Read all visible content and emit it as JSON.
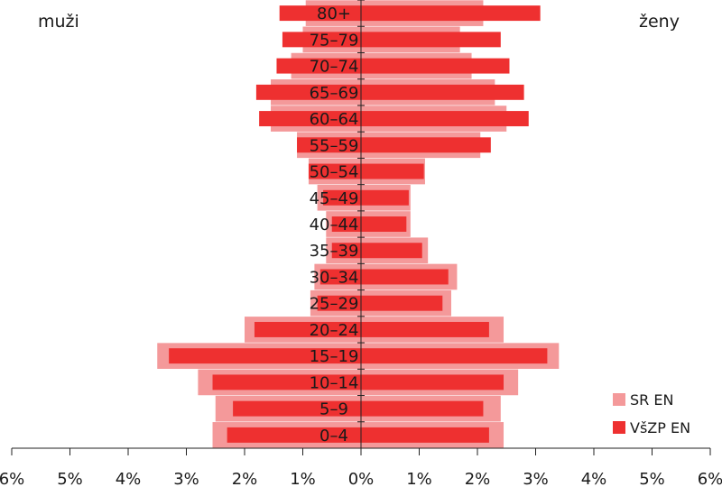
{
  "chart_data": {
    "type": "bar",
    "orientation": "horizontal",
    "subtype": "population-pyramid",
    "left_group_label": "muži",
    "right_group_label": "ženy",
    "categories": [
      "0–4",
      "5–9",
      "10–14",
      "15–19",
      "20–24",
      "25–29",
      "30–34",
      "35–39",
      "40–44",
      "45–49",
      "50–54",
      "55–59",
      "60–64",
      "65–69",
      "70–74",
      "75–79",
      "80+"
    ],
    "series": [
      {
        "name": "SR EN",
        "color": "#f4999a",
        "men": [
          2.55,
          2.5,
          2.8,
          3.5,
          2.0,
          0.87,
          0.8,
          0.6,
          0.6,
          0.75,
          0.9,
          1.1,
          1.55,
          1.55,
          1.2,
          1.0,
          0.95
        ],
        "women": [
          2.45,
          2.4,
          2.7,
          3.4,
          2.45,
          1.55,
          1.65,
          1.15,
          0.85,
          0.85,
          1.1,
          2.05,
          2.5,
          2.3,
          1.9,
          1.7,
          2.1
        ]
      },
      {
        "name": "VšZP EN",
        "color": "#ee3030",
        "men": [
          2.3,
          2.2,
          2.55,
          3.3,
          1.83,
          0.75,
          0.7,
          0.5,
          0.5,
          0.65,
          0.9,
          1.1,
          1.75,
          1.8,
          1.45,
          1.35,
          1.4
        ],
        "women": [
          2.2,
          2.1,
          2.45,
          3.2,
          2.2,
          1.4,
          1.5,
          1.05,
          0.78,
          0.82,
          1.08,
          2.23,
          2.88,
          2.8,
          2.55,
          2.4,
          3.08
        ]
      }
    ],
    "x_ticks": [
      "6%",
      "5%",
      "4%",
      "3%",
      "2%",
      "1%",
      "0%",
      "1%",
      "2%",
      "3%",
      "4%",
      "5%",
      "6%"
    ],
    "xlim": [
      -6,
      6
    ],
    "legend_position": "bottom-right",
    "grid": false
  }
}
